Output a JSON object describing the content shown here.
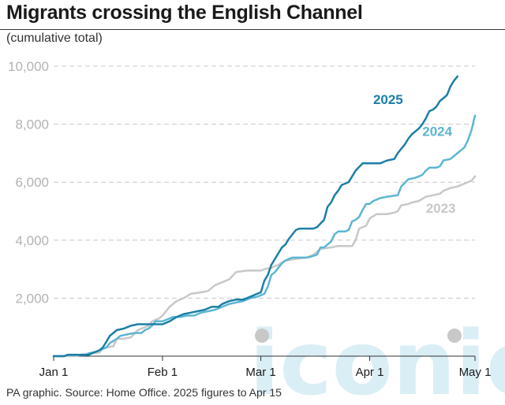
{
  "header": {
    "title": "Migrants crossing the English Channel",
    "subtitle": "(cumulative total)"
  },
  "footer": {
    "source": "PA graphic. Source: Home Office. 2025 figures to Apr 15"
  },
  "watermark": {
    "text": "iconic",
    "color": "#cde8f2"
  },
  "chart_data": {
    "type": "line",
    "title": "Migrants crossing the English Channel",
    "subtitle": "(cumulative total)",
    "xlabel": "",
    "ylabel": "",
    "x_unit": "day of year",
    "xlim": [
      0,
      120
    ],
    "ylim": [
      0,
      10000
    ],
    "grid": true,
    "legend": "labels at line ends",
    "y_ticks": [
      {
        "value": 2000,
        "label": "2,000"
      },
      {
        "value": 4000,
        "label": "4,000"
      },
      {
        "value": 6000,
        "label": "6,000"
      },
      {
        "value": 8000,
        "label": "8,000"
      },
      {
        "value": 10000,
        "label": "10,000"
      }
    ],
    "x_ticks": [
      {
        "value": 0,
        "label": "Jan 1"
      },
      {
        "value": 31,
        "label": "Feb 1"
      },
      {
        "value": 59,
        "label": "Mar 1"
      },
      {
        "value": 90,
        "label": "Apr 1"
      },
      {
        "value": 120,
        "label": "May 1"
      }
    ],
    "series": [
      {
        "name": "2023",
        "color": "#c8c8c8",
        "points": [
          [
            0,
            0
          ],
          [
            6,
            0
          ],
          [
            8,
            60
          ],
          [
            10,
            60
          ],
          [
            11,
            120
          ],
          [
            13,
            120
          ],
          [
            14,
            250
          ],
          [
            15,
            300
          ],
          [
            17,
            340
          ],
          [
            18,
            600
          ],
          [
            20,
            600
          ],
          [
            22,
            650
          ],
          [
            24,
            900
          ],
          [
            26,
            1000
          ],
          [
            27,
            1050
          ],
          [
            28,
            1200
          ],
          [
            30,
            1300
          ],
          [
            31,
            1400
          ],
          [
            33,
            1700
          ],
          [
            35,
            1900
          ],
          [
            37,
            2000
          ],
          [
            39,
            2150
          ],
          [
            42,
            2200
          ],
          [
            44,
            2250
          ],
          [
            46,
            2450
          ],
          [
            48,
            2550
          ],
          [
            50,
            2650
          ],
          [
            52,
            2900
          ],
          [
            55,
            2950
          ],
          [
            59,
            2950
          ],
          [
            60,
            3000
          ],
          [
            62,
            3050
          ],
          [
            64,
            3150
          ],
          [
            66,
            3300
          ],
          [
            69,
            3350
          ],
          [
            72,
            3400
          ],
          [
            74,
            3500
          ],
          [
            76,
            3700
          ],
          [
            79,
            3750
          ],
          [
            81,
            3800
          ],
          [
            83,
            3800
          ],
          [
            85,
            3800
          ],
          [
            86,
            4000
          ],
          [
            87,
            4400
          ],
          [
            89,
            4500
          ],
          [
            90,
            4750
          ],
          [
            92,
            4900
          ],
          [
            95,
            4900
          ],
          [
            97,
            4950
          ],
          [
            98,
            5000
          ],
          [
            99,
            5200
          ],
          [
            101,
            5250
          ],
          [
            102,
            5300
          ],
          [
            104,
            5350
          ],
          [
            106,
            5500
          ],
          [
            108,
            5550
          ],
          [
            110,
            5600
          ],
          [
            111,
            5700
          ],
          [
            113,
            5800
          ],
          [
            115,
            5850
          ],
          [
            117,
            5950
          ],
          [
            118,
            6000
          ],
          [
            119,
            6050
          ],
          [
            120,
            6200
          ]
        ]
      },
      {
        "name": "2024",
        "color": "#5cb6d3",
        "points": [
          [
            0,
            0
          ],
          [
            3,
            0
          ],
          [
            4,
            40
          ],
          [
            9,
            40
          ],
          [
            10,
            100
          ],
          [
            12,
            150
          ],
          [
            14,
            250
          ],
          [
            15,
            300
          ],
          [
            16,
            450
          ],
          [
            18,
            600
          ],
          [
            19,
            700
          ],
          [
            21,
            750
          ],
          [
            23,
            800
          ],
          [
            25,
            800
          ],
          [
            26,
            900
          ],
          [
            27,
            950
          ],
          [
            28,
            1050
          ],
          [
            29,
            1200
          ],
          [
            31,
            1200
          ],
          [
            32,
            1250
          ],
          [
            33,
            1300
          ],
          [
            34,
            1350
          ],
          [
            36,
            1350
          ],
          [
            38,
            1400
          ],
          [
            40,
            1400
          ],
          [
            42,
            1500
          ],
          [
            44,
            1550
          ],
          [
            46,
            1600
          ],
          [
            48,
            1700
          ],
          [
            50,
            1800
          ],
          [
            52,
            1850
          ],
          [
            54,
            1900
          ],
          [
            56,
            2000
          ],
          [
            58,
            2050
          ],
          [
            60,
            2150
          ],
          [
            61,
            2400
          ],
          [
            62,
            2800
          ],
          [
            63,
            2900
          ],
          [
            64,
            3050
          ],
          [
            65,
            3200
          ],
          [
            66,
            3300
          ],
          [
            67,
            3350
          ],
          [
            68,
            3400
          ],
          [
            70,
            3400
          ],
          [
            72,
            3400
          ],
          [
            73,
            3420
          ],
          [
            75,
            3500
          ],
          [
            76,
            3750
          ],
          [
            77,
            3750
          ],
          [
            78,
            3850
          ],
          [
            79,
            3950
          ],
          [
            80,
            4200
          ],
          [
            81,
            4300
          ],
          [
            83,
            4300
          ],
          [
            84,
            4350
          ],
          [
            85,
            4650
          ],
          [
            86,
            4700
          ],
          [
            87,
            4800
          ],
          [
            88,
            5050
          ],
          [
            89,
            5250
          ],
          [
            90,
            5250
          ],
          [
            91,
            5350
          ],
          [
            92,
            5400
          ],
          [
            93,
            5450
          ],
          [
            95,
            5500
          ],
          [
            98,
            5550
          ],
          [
            99,
            5850
          ],
          [
            101,
            6100
          ],
          [
            103,
            6150
          ],
          [
            105,
            6250
          ],
          [
            106,
            6400
          ],
          [
            107,
            6500
          ],
          [
            109,
            6500
          ],
          [
            110,
            6550
          ],
          [
            111,
            6750
          ],
          [
            113,
            6800
          ],
          [
            115,
            7000
          ],
          [
            116,
            7100
          ],
          [
            117,
            7200
          ],
          [
            118,
            7450
          ],
          [
            119,
            7800
          ],
          [
            120,
            8300
          ]
        ]
      },
      {
        "name": "2025",
        "color": "#1b7fa6",
        "points": [
          [
            0,
            0
          ],
          [
            3,
            0
          ],
          [
            4,
            50
          ],
          [
            10,
            50
          ],
          [
            11,
            100
          ],
          [
            13,
            200
          ],
          [
            14,
            300
          ],
          [
            15,
            500
          ],
          [
            16,
            700
          ],
          [
            17,
            800
          ],
          [
            18,
            900
          ],
          [
            20,
            950
          ],
          [
            21,
            1000
          ],
          [
            22,
            1050
          ],
          [
            24,
            1100
          ],
          [
            31,
            1100
          ],
          [
            33,
            1200
          ],
          [
            35,
            1350
          ],
          [
            37,
            1450
          ],
          [
            39,
            1500
          ],
          [
            41,
            1550
          ],
          [
            43,
            1600
          ],
          [
            45,
            1700
          ],
          [
            47,
            1700
          ],
          [
            48,
            1800
          ],
          [
            50,
            1900
          ],
          [
            52,
            1950
          ],
          [
            54,
            1950
          ],
          [
            55,
            2000
          ],
          [
            57,
            2100
          ],
          [
            59,
            2200
          ],
          [
            60,
            2600
          ],
          [
            61,
            2800
          ],
          [
            62,
            3150
          ],
          [
            63,
            3350
          ],
          [
            64,
            3550
          ],
          [
            65,
            3750
          ],
          [
            66,
            3850
          ],
          [
            67,
            4050
          ],
          [
            68,
            4200
          ],
          [
            69,
            4350
          ],
          [
            70,
            4400
          ],
          [
            72,
            4400
          ],
          [
            74,
            4400
          ],
          [
            75,
            4450
          ],
          [
            77,
            4700
          ],
          [
            78,
            5150
          ],
          [
            79,
            5300
          ],
          [
            80,
            5550
          ],
          [
            81,
            5700
          ],
          [
            82,
            5900
          ],
          [
            84,
            6000
          ],
          [
            85,
            6200
          ],
          [
            86,
            6400
          ],
          [
            88,
            6650
          ],
          [
            90,
            6650
          ],
          [
            93,
            6650
          ],
          [
            94,
            6700
          ],
          [
            95,
            6750
          ],
          [
            97,
            6800
          ],
          [
            98,
            7000
          ],
          [
            99,
            7150
          ],
          [
            100,
            7300
          ],
          [
            101,
            7500
          ],
          [
            102,
            7650
          ],
          [
            103,
            7750
          ],
          [
            104,
            7850
          ],
          [
            105,
            8000
          ],
          [
            106,
            8200
          ],
          [
            107,
            8450
          ],
          [
            108,
            8500
          ],
          [
            109,
            8600
          ],
          [
            110,
            8800
          ],
          [
            111,
            8900
          ],
          [
            112,
            9000
          ],
          [
            113,
            9300
          ],
          [
            114,
            9500
          ],
          [
            115,
            9650
          ]
        ]
      }
    ],
    "series_labels": [
      {
        "series": "2025",
        "text": "2025",
        "x": 91,
        "y": 8700
      },
      {
        "series": "2024",
        "text": "2024",
        "x": 105,
        "y": 7600
      },
      {
        "series": "2023",
        "text": "2023",
        "x": 106,
        "y": 4950
      }
    ]
  }
}
